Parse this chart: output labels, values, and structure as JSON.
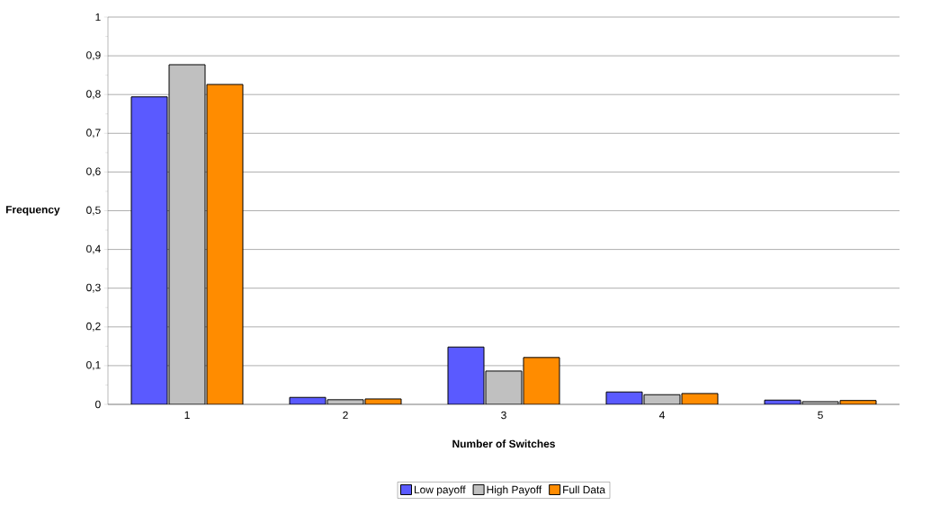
{
  "chart_data": {
    "type": "bar",
    "xlabel": "Number of Switches",
    "ylabel": "Frequency",
    "categories": [
      "1",
      "2",
      "3",
      "4",
      "5"
    ],
    "series": [
      {
        "name": "Low payoff",
        "color": "#5a5aff",
        "values": [
          0.794,
          0.018,
          0.148,
          0.032,
          0.011
        ]
      },
      {
        "name": "High Payoff",
        "color": "#c0c0c0",
        "values": [
          0.877,
          0.012,
          0.086,
          0.025,
          0.007
        ]
      },
      {
        "name": "Full Data",
        "color": "#ff8c00",
        "values": [
          0.826,
          0.014,
          0.121,
          0.028,
          0.01
        ]
      }
    ],
    "ylim": [
      0,
      1
    ],
    "yticks": [
      0,
      {
        "value": 0.1,
        "label": "0,1"
      },
      {
        "value": 0.2,
        "label": "0,2"
      },
      {
        "value": 0.3,
        "label": "0,3"
      },
      {
        "value": 0.4,
        "label": "0,4"
      },
      {
        "value": 0.5,
        "label": "0,5"
      },
      {
        "value": 0.6,
        "label": "0,6"
      },
      {
        "value": 0.7,
        "label": "0,7"
      },
      {
        "value": 0.8,
        "label": "0,8"
      },
      {
        "value": 0.9,
        "label": "0,9"
      },
      1
    ],
    "grid": "y",
    "legend": "bottom"
  }
}
